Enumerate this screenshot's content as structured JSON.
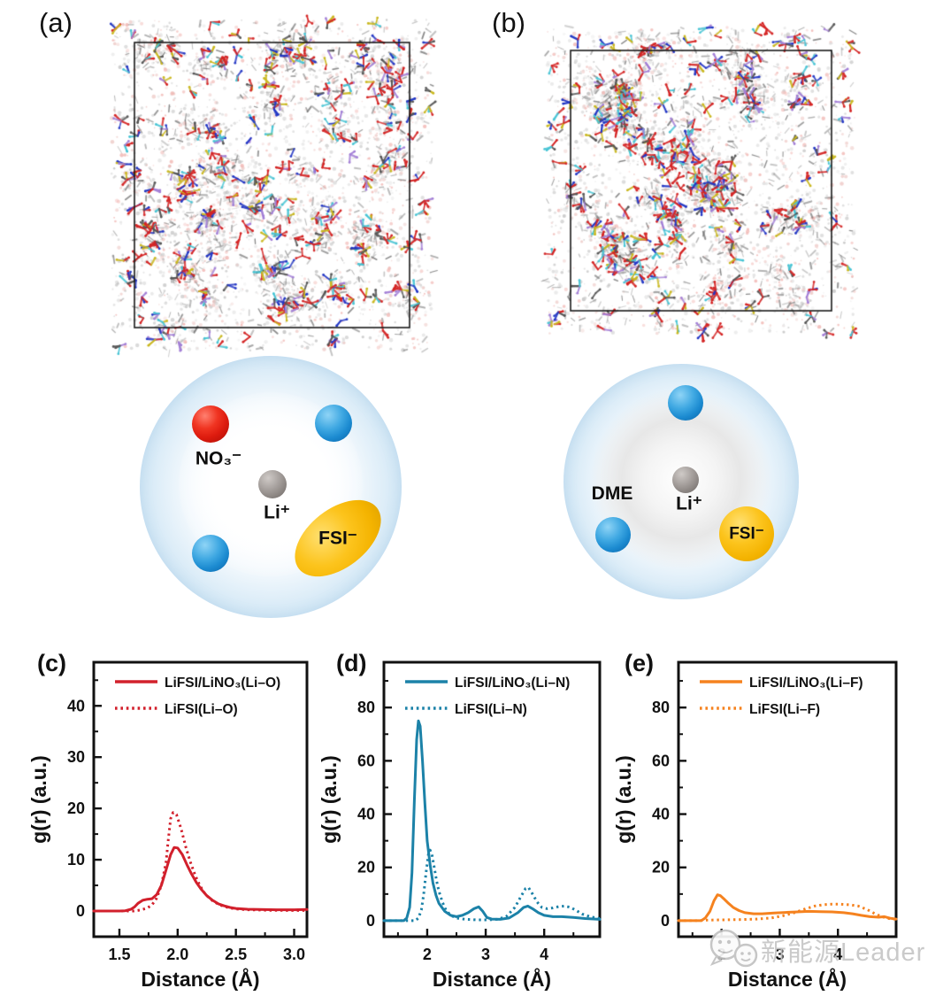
{
  "figure": {
    "panels": {
      "a": {
        "label": "(a)"
      },
      "b": {
        "label": "(b)"
      },
      "c": {
        "label": "(c)"
      },
      "d": {
        "label": "(d)"
      },
      "e": {
        "label": "(e)"
      }
    },
    "solvation_left": {
      "anion_label": "NO₃⁻",
      "cation_label": "Li⁺",
      "fsi_label": "FSI⁻",
      "shell_color": "#a6cde7",
      "anion_color": "#dd1b0e",
      "solvent_sphere_color": "#1b8ad0",
      "cation_color": "#8a8481",
      "fsi_color": "#f4b300"
    },
    "solvation_right": {
      "solvent_label": "DME",
      "cation_label": "Li⁺",
      "fsi_label": "FSI⁻"
    },
    "watermark": {
      "text": "新能源Leader",
      "icon": "wechat-bubbles-icon"
    }
  },
  "md_palette": {
    "light": [
      "#e6e6e6",
      "#dadada",
      "#cfcfcf",
      "#c2c2c2",
      "#f1b6b2",
      "#eecac7"
    ],
    "gray": [
      "#9a9a9a",
      "#7b7b7b",
      "#5f5f5f"
    ],
    "atoms": [
      "#d42424",
      "#d42424",
      "#d42424",
      "#c9b71e",
      "#2236c4",
      "#47c4d4",
      "#a37fd6",
      "#555555"
    ]
  },
  "chart_data": [
    {
      "id": "c",
      "type": "line",
      "panel": "(c)",
      "xlabel": "Distance (Å)",
      "ylabel": "g(r) (a.u.)",
      "color": "#d2202c",
      "xlim": [
        1.28,
        3.11
      ],
      "ylim": [
        -5,
        48.5
      ],
      "xticks": [
        {
          "v": 1.5,
          "label": "1.5"
        },
        {
          "v": 2.0,
          "label": "2.0"
        },
        {
          "v": 2.5,
          "label": "2.5"
        },
        {
          "v": 3.0,
          "label": "3.0"
        }
      ],
      "xminor": [
        1.75,
        2.25,
        2.75
      ],
      "yticks": [
        {
          "v": 0,
          "label": "0"
        },
        {
          "v": 10,
          "label": "10"
        },
        {
          "v": 20,
          "label": "20"
        },
        {
          "v": 30,
          "label": "30"
        },
        {
          "v": 40,
          "label": "40"
        }
      ],
      "yminor": [
        5,
        15,
        25,
        35,
        45
      ],
      "legend_position": "top-inside",
      "grid": false,
      "series": [
        {
          "name": "LiFSI/LiNO₃(Li–O)",
          "style": "solid",
          "points": [
            [
              1.28,
              0
            ],
            [
              1.5,
              0
            ],
            [
              1.55,
              0.05
            ],
            [
              1.6,
              0.35
            ],
            [
              1.63,
              0.8
            ],
            [
              1.66,
              1.5
            ],
            [
              1.7,
              2.1
            ],
            [
              1.74,
              2.3
            ],
            [
              1.78,
              2.4
            ],
            [
              1.82,
              3.2
            ],
            [
              1.86,
              5
            ],
            [
              1.9,
              8
            ],
            [
              1.94,
              11
            ],
            [
              1.97,
              12.4
            ],
            [
              2.0,
              12.3
            ],
            [
              2.04,
              11
            ],
            [
              2.08,
              9
            ],
            [
              2.12,
              7.2
            ],
            [
              2.16,
              5.6
            ],
            [
              2.2,
              4.3
            ],
            [
              2.25,
              3
            ],
            [
              2.3,
              2.1
            ],
            [
              2.35,
              1.4
            ],
            [
              2.4,
              1
            ],
            [
              2.45,
              0.7
            ],
            [
              2.5,
              0.5
            ],
            [
              2.6,
              0.35
            ],
            [
              2.7,
              0.3
            ],
            [
              2.85,
              0.25
            ],
            [
              3.0,
              0.25
            ],
            [
              3.11,
              0.3
            ]
          ]
        },
        {
          "name": "LiFSI(Li–O)",
          "style": "dotted",
          "points": [
            [
              1.28,
              0
            ],
            [
              1.62,
              0
            ],
            [
              1.68,
              0.2
            ],
            [
              1.74,
              0.6
            ],
            [
              1.78,
              1.2
            ],
            [
              1.82,
              2.5
            ],
            [
              1.86,
              5
            ],
            [
              1.9,
              9.5
            ],
            [
              1.92,
              14
            ],
            [
              1.94,
              18
            ],
            [
              1.96,
              19.2
            ],
            [
              1.99,
              18.8
            ],
            [
              2.03,
              16
            ],
            [
              2.07,
              12.5
            ],
            [
              2.11,
              9.5
            ],
            [
              2.15,
              7
            ],
            [
              2.19,
              5
            ],
            [
              2.24,
              3.2
            ],
            [
              2.3,
              2
            ],
            [
              2.36,
              1.2
            ],
            [
              2.43,
              0.7
            ],
            [
              2.5,
              0.4
            ],
            [
              2.6,
              0.25
            ],
            [
              2.8,
              0.15
            ],
            [
              3.0,
              0.1
            ],
            [
              3.11,
              0.1
            ]
          ]
        }
      ]
    },
    {
      "id": "d",
      "type": "line",
      "panel": "(d)",
      "xlabel": "Distance (Å)",
      "ylabel": "g(r) (a.u.)",
      "color": "#1c82a8",
      "xlim": [
        1.26,
        4.95
      ],
      "ylim": [
        -6,
        97
      ],
      "xticks": [
        {
          "v": 2,
          "label": "2"
        },
        {
          "v": 3,
          "label": "3"
        },
        {
          "v": 4,
          "label": "4"
        }
      ],
      "xminor": [
        1.5,
        2.5,
        3.5,
        4.5
      ],
      "yticks": [
        {
          "v": 0,
          "label": "0"
        },
        {
          "v": 20,
          "label": "20"
        },
        {
          "v": 40,
          "label": "40"
        },
        {
          "v": 60,
          "label": "60"
        },
        {
          "v": 80,
          "label": "80"
        }
      ],
      "yminor": [
        10,
        30,
        50,
        70,
        90
      ],
      "legend_position": "top-inside",
      "grid": false,
      "series": [
        {
          "name": "LiFSI/LiNO₃(Li–N)",
          "style": "solid",
          "points": [
            [
              1.26,
              0
            ],
            [
              1.6,
              0
            ],
            [
              1.65,
              1
            ],
            [
              1.7,
              5
            ],
            [
              1.74,
              18
            ],
            [
              1.78,
              45
            ],
            [
              1.82,
              68
            ],
            [
              1.85,
              75
            ],
            [
              1.88,
              73
            ],
            [
              1.92,
              60
            ],
            [
              1.96,
              44
            ],
            [
              2.0,
              30
            ],
            [
              2.05,
              21
            ],
            [
              2.1,
              14
            ],
            [
              2.15,
              9.5
            ],
            [
              2.2,
              6.5
            ],
            [
              2.3,
              3.5
            ],
            [
              2.4,
              2
            ],
            [
              2.5,
              1.5
            ],
            [
              2.6,
              2
            ],
            [
              2.7,
              3
            ],
            [
              2.8,
              4.5
            ],
            [
              2.88,
              5.2
            ],
            [
              2.95,
              3.5
            ],
            [
              3.02,
              1.2
            ],
            [
              3.1,
              0.6
            ],
            [
              3.25,
              0.5
            ],
            [
              3.4,
              1
            ],
            [
              3.55,
              3
            ],
            [
              3.65,
              5
            ],
            [
              3.72,
              5.5
            ],
            [
              3.8,
              4.5
            ],
            [
              3.9,
              3
            ],
            [
              4.0,
              2
            ],
            [
              4.15,
              1.5
            ],
            [
              4.3,
              1.5
            ],
            [
              4.5,
              1.2
            ],
            [
              4.7,
              0.8
            ],
            [
              4.95,
              0.5
            ]
          ]
        },
        {
          "name": "LiFSI(Li–N)",
          "style": "dotted",
          "points": [
            [
              1.26,
              0
            ],
            [
              1.8,
              0
            ],
            [
              1.85,
              1
            ],
            [
              1.9,
              4
            ],
            [
              1.94,
              10
            ],
            [
              1.98,
              18
            ],
            [
              2.02,
              25
            ],
            [
              2.05,
              26.5
            ],
            [
              2.08,
              25
            ],
            [
              2.12,
              20
            ],
            [
              2.16,
              15
            ],
            [
              2.2,
              11
            ],
            [
              2.26,
              7
            ],
            [
              2.32,
              4
            ],
            [
              2.4,
              2
            ],
            [
              2.5,
              1
            ],
            [
              2.65,
              0.5
            ],
            [
              2.85,
              0.3
            ],
            [
              3.05,
              0.3
            ],
            [
              3.2,
              0.5
            ],
            [
              3.35,
              1.5
            ],
            [
              3.5,
              5
            ],
            [
              3.6,
              9
            ],
            [
              3.68,
              12
            ],
            [
              3.73,
              12.5
            ],
            [
              3.8,
              10
            ],
            [
              3.88,
              7
            ],
            [
              3.96,
              5
            ],
            [
              4.05,
              4.5
            ],
            [
              4.15,
              4.8
            ],
            [
              4.25,
              5.3
            ],
            [
              4.35,
              5.5
            ],
            [
              4.45,
              5
            ],
            [
              4.55,
              3.8
            ],
            [
              4.65,
              2.5
            ],
            [
              4.78,
              1.5
            ],
            [
              4.95,
              0.8
            ]
          ]
        }
      ]
    },
    {
      "id": "e",
      "type": "line",
      "panel": "(e)",
      "xlabel": "Distance (Å)",
      "ylabel": "g(r) (a.u.)",
      "color": "#f5821f",
      "xlim": [
        1.26,
        5.0
      ],
      "ylim": [
        -6,
        97
      ],
      "xticks": [
        {
          "v": 2,
          "label": "2"
        },
        {
          "v": 3,
          "label": "3"
        },
        {
          "v": 4,
          "label": "4"
        }
      ],
      "xminor": [
        1.5,
        2.5,
        3.5,
        4.5
      ],
      "yticks": [
        {
          "v": 0,
          "label": "0"
        },
        {
          "v": 20,
          "label": "20"
        },
        {
          "v": 40,
          "label": "40"
        },
        {
          "v": 60,
          "label": "60"
        },
        {
          "v": 80,
          "label": "80"
        }
      ],
      "yminor": [
        10,
        30,
        50,
        70,
        90
      ],
      "legend_position": "top-inside",
      "grid": false,
      "series": [
        {
          "name": "LiFSI/LiNO₃(Li–F)",
          "style": "solid",
          "points": [
            [
              1.26,
              0
            ],
            [
              1.65,
              0
            ],
            [
              1.72,
              1
            ],
            [
              1.8,
              3.5
            ],
            [
              1.87,
              7.5
            ],
            [
              1.93,
              9.7
            ],
            [
              1.98,
              9.4
            ],
            [
              2.05,
              8
            ],
            [
              2.12,
              6.5
            ],
            [
              2.2,
              5
            ],
            [
              2.3,
              3.8
            ],
            [
              2.4,
              3
            ],
            [
              2.55,
              2.6
            ],
            [
              2.7,
              2.6
            ],
            [
              2.9,
              2.9
            ],
            [
              3.1,
              3.1
            ],
            [
              3.3,
              3.3
            ],
            [
              3.5,
              3.5
            ],
            [
              3.7,
              3.4
            ],
            [
              3.9,
              3.3
            ],
            [
              4.1,
              3
            ],
            [
              4.25,
              2.6
            ],
            [
              4.4,
              2
            ],
            [
              4.55,
              1.5
            ],
            [
              4.7,
              1.3
            ],
            [
              4.8,
              1.5
            ],
            [
              4.9,
              0.9
            ],
            [
              5.0,
              0.6
            ]
          ]
        },
        {
          "name": "LiFSI(Li–F)",
          "style": "dotted",
          "points": [
            [
              1.26,
              0
            ],
            [
              1.6,
              0
            ],
            [
              1.75,
              0.2
            ],
            [
              2.0,
              0.3
            ],
            [
              2.3,
              0.4
            ],
            [
              2.6,
              0.6
            ],
            [
              2.85,
              1
            ],
            [
              3.05,
              1.8
            ],
            [
              3.25,
              3
            ],
            [
              3.45,
              4.5
            ],
            [
              3.6,
              5.5
            ],
            [
              3.75,
              6
            ],
            [
              3.9,
              6.2
            ],
            [
              4.05,
              6.2
            ],
            [
              4.2,
              6
            ],
            [
              4.35,
              5.5
            ],
            [
              4.5,
              4.2
            ],
            [
              4.62,
              2.8
            ],
            [
              4.75,
              1.5
            ],
            [
              4.88,
              0.8
            ],
            [
              5.0,
              0.5
            ]
          ]
        }
      ]
    }
  ]
}
